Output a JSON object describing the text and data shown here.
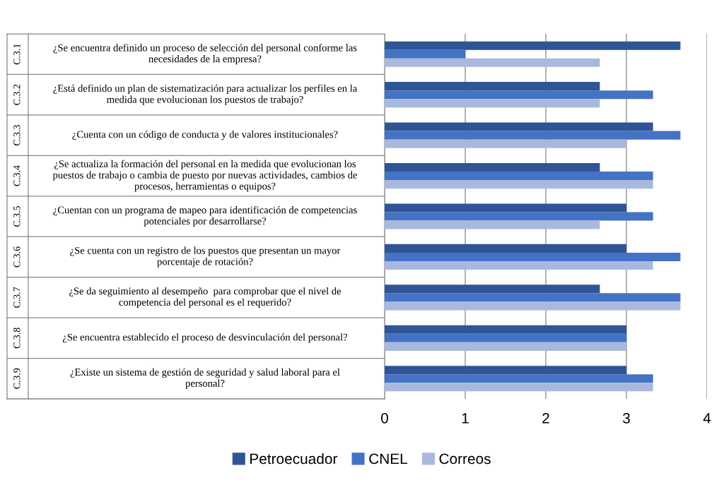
{
  "chart_data": {
    "type": "bar",
    "orientation": "horizontal",
    "categories": [
      "C.3.1\n¿Se encuentra definido un proceso de selección del personal conforme las\nnecesidades de la empresa?",
      "C.3.2\n¿Está definido un plan de sistematización para actualizar los perfiles en la\nmedida que evolucionan los puestos de trabajo?",
      "C.3.3\n¿Cuenta con un código de conducta y de valores institucionales?",
      "C.3.4\n¿Se actualiza la formación del personal en la medida que evolucionan los\npuestos de trabajo o cambia de puesto por nuevas actividades, cambios de\nprocesos, herramientas o equipos?",
      "C.3.5\n¿Cuentan con un programa de mapeo para identificación de competencias\npotenciales por desarrollarse?",
      "C.3.6\n¿Se cuenta con un registro de los puestos que presentan un mayor\nporcentaje de rotación?",
      "C.3.7\n¿Se da seguimiento al desempeño  para comprobar que el nivel de\ncompetencia del personal es el requerido?",
      "C.3.8\n¿Se encuentra establecido el proceso de desvinculación del personal?",
      "C.3.9\n¿Existe un sistema de gestión de seguridad y salud laboral para el\npersonal?"
    ],
    "series": [
      {
        "name": "Petroecuador",
        "color": "#2f5597",
        "values": [
          3.67,
          2.67,
          3.33,
          2.67,
          3.0,
          3.0,
          2.67,
          3.0,
          3.0
        ]
      },
      {
        "name": "CNEL",
        "color": "#4472c4",
        "values": [
          1.0,
          3.33,
          3.67,
          3.33,
          3.33,
          3.67,
          3.67,
          3.0,
          3.33
        ]
      },
      {
        "name": "Correos",
        "color": "#a9b9dd",
        "values": [
          2.67,
          2.67,
          3.0,
          3.33,
          2.67,
          3.33,
          3.67,
          3.0,
          3.33
        ]
      }
    ],
    "xlim": [
      0,
      4
    ],
    "xticks": [
      0,
      1,
      2,
      3,
      4
    ],
    "grid": "x",
    "legend": "bottom"
  }
}
